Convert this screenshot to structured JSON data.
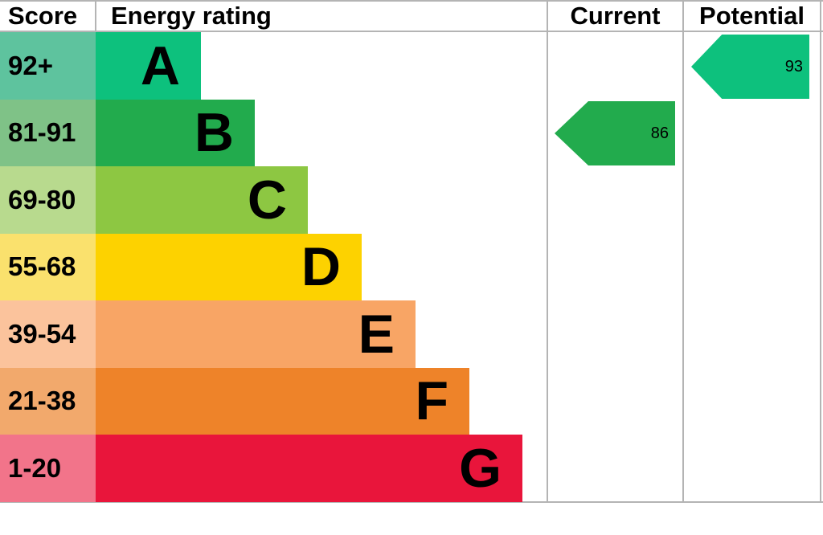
{
  "header": {
    "score": "Score",
    "energy_rating": "Energy rating",
    "current": "Current",
    "potential": "Potential"
  },
  "bands": [
    {
      "letter": "A",
      "score_range": "92+",
      "bar_color": "#0dc17d",
      "score_color": "#5ec39e"
    },
    {
      "letter": "B",
      "score_range": "81-91",
      "bar_color": "#22ab4d",
      "score_color": "#7fc287"
    },
    {
      "letter": "C",
      "score_range": "69-80",
      "bar_color": "#8dc742",
      "score_color": "#b8da8e"
    },
    {
      "letter": "D",
      "score_range": "55-68",
      "bar_color": "#fdd200",
      "score_color": "#fae16d"
    },
    {
      "letter": "E",
      "score_range": "39-54",
      "bar_color": "#f8a565",
      "score_color": "#fbc39c"
    },
    {
      "letter": "F",
      "score_range": "21-38",
      "bar_color": "#ee8329",
      "score_color": "#f2a96c"
    },
    {
      "letter": "G",
      "score_range": "1-20",
      "bar_color": "#e9153b",
      "score_color": "#f2748a"
    }
  ],
  "current": {
    "value": "86",
    "band": "B",
    "color": "#22ab4d"
  },
  "potential": {
    "value": "93",
    "band": "A",
    "color": "#0dc17d"
  },
  "line_color": "#b4b4b4",
  "chart_data": {
    "type": "bar",
    "title": "Energy rating",
    "categories": [
      "A",
      "B",
      "C",
      "D",
      "E",
      "F",
      "G"
    ],
    "score_ranges": [
      "92+",
      "81-91",
      "69-80",
      "55-68",
      "39-54",
      "21-38",
      "1-20"
    ],
    "band_colors": [
      "#0dc17d",
      "#22ab4d",
      "#8dc742",
      "#fdd200",
      "#f8a565",
      "#ee8329",
      "#e9153b"
    ],
    "columns": [
      "Score",
      "Energy rating",
      "Current",
      "Potential"
    ],
    "current": {
      "value": 86,
      "band": "B"
    },
    "potential": {
      "value": 93,
      "band": "A"
    },
    "legend_position": "none",
    "grid": false
  }
}
